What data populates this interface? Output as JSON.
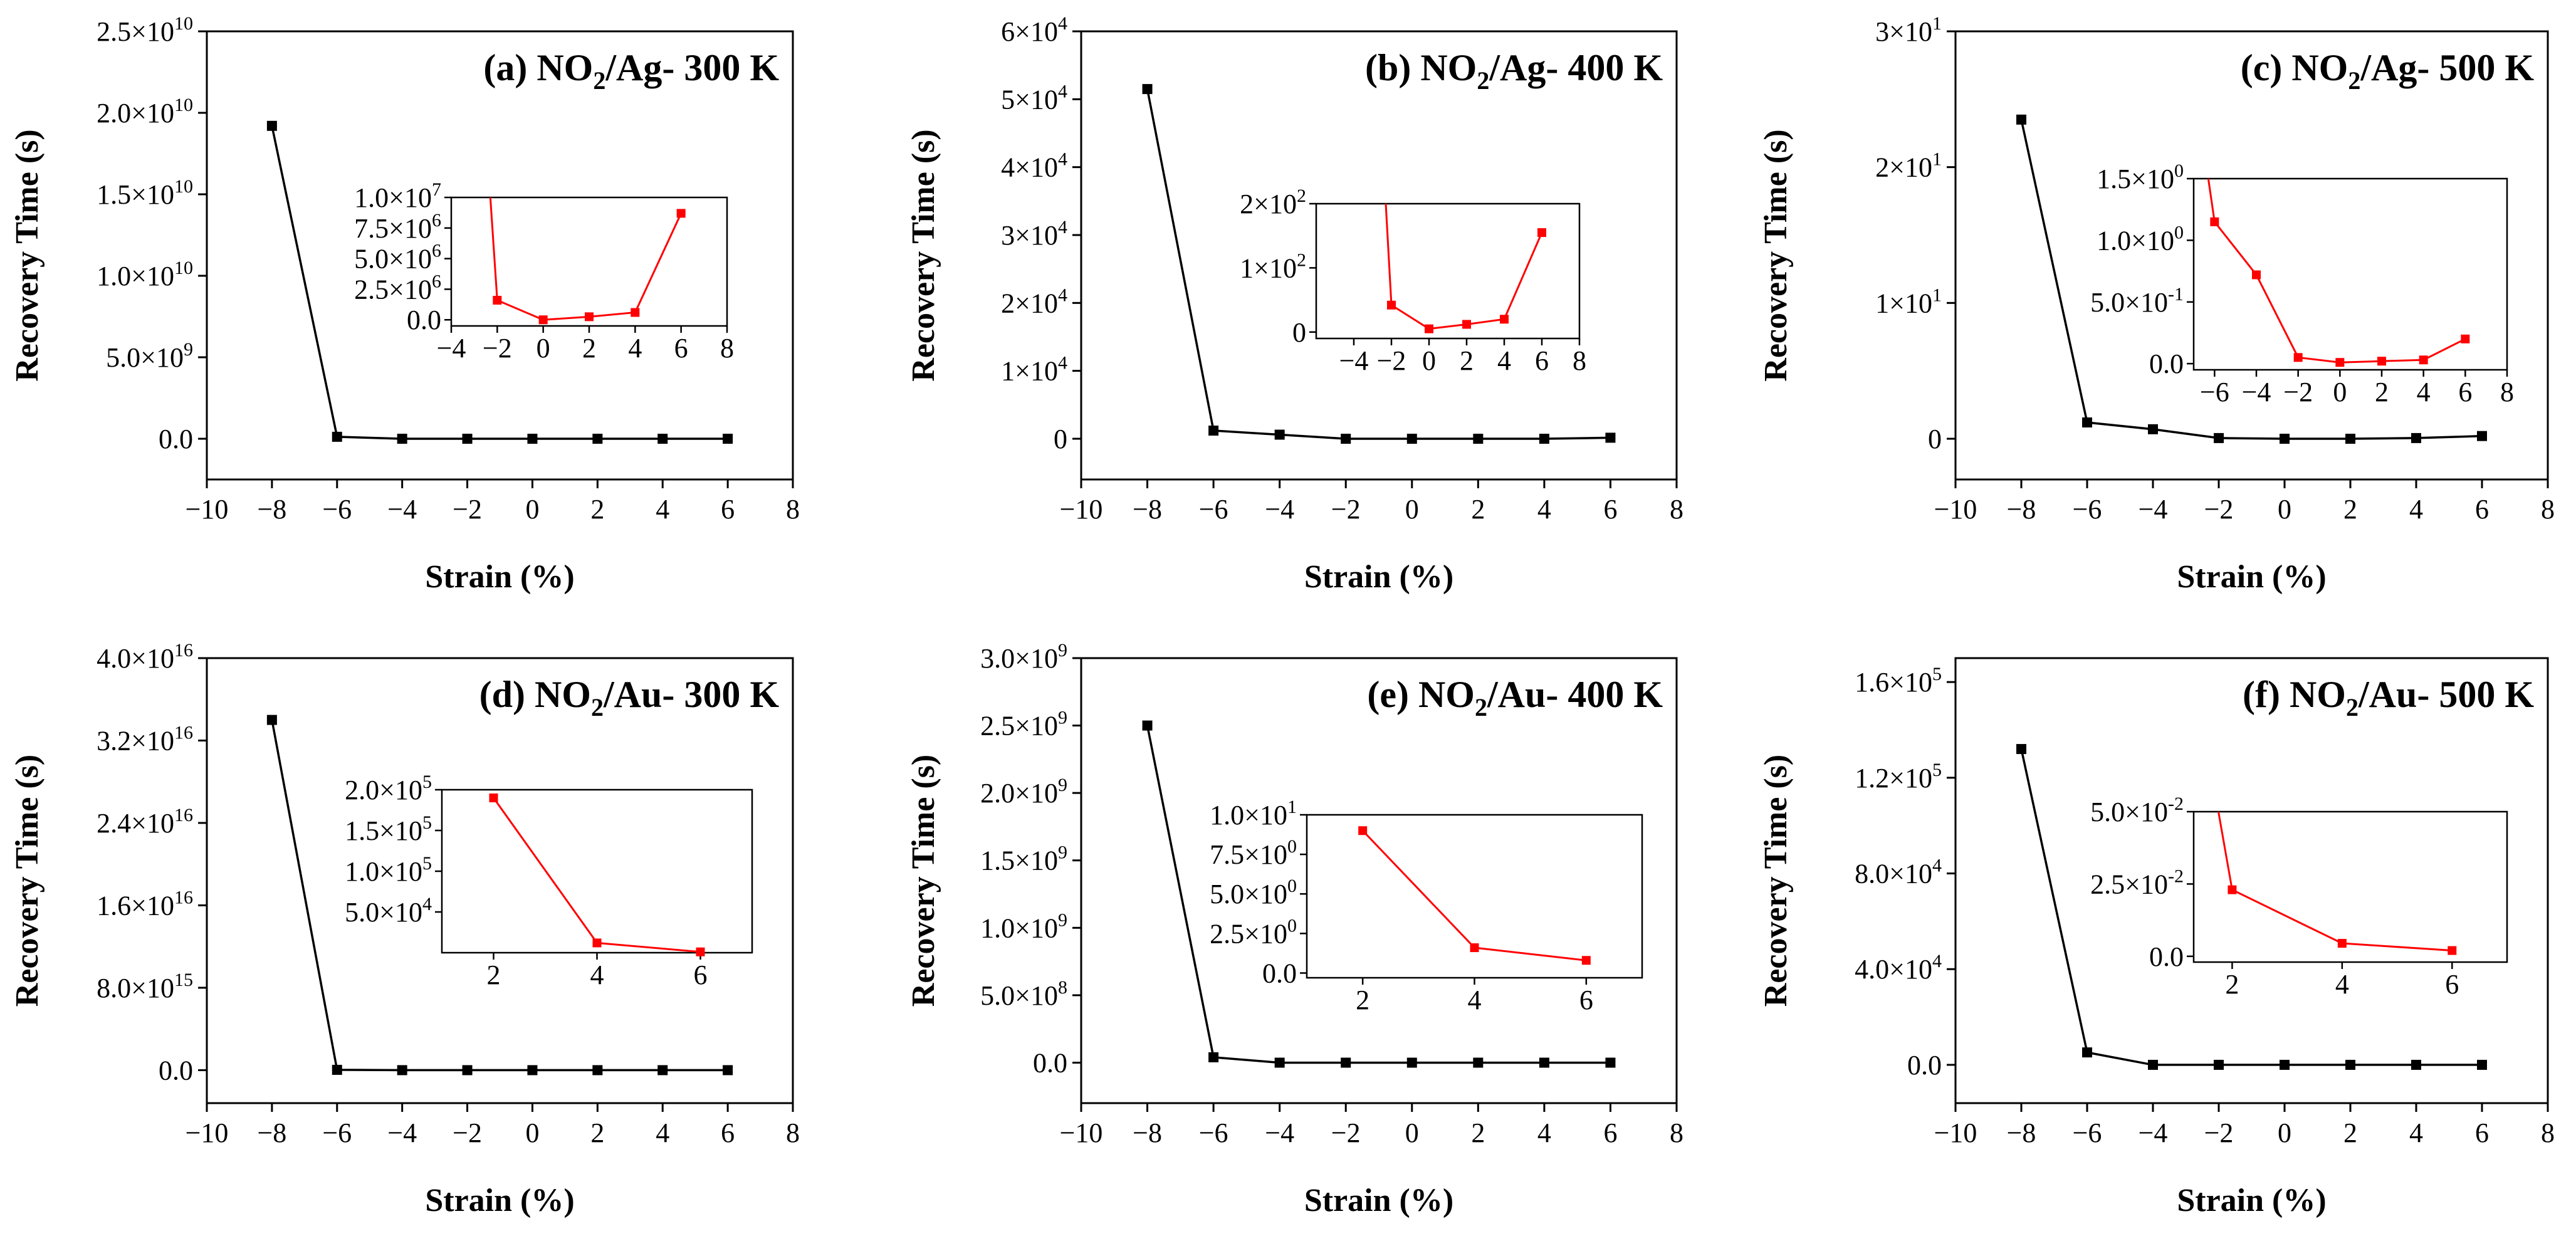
{
  "figure": {
    "description_free": true,
    "xlabel": "Strain (%)",
    "ylabel": "Recovery Time (s)"
  },
  "chart_data": [
    {
      "type": "line",
      "id": "a",
      "title": {
        "prefix": "(a) NO",
        "sub": "2",
        "suffix": "/Ag-  300 K"
      },
      "xlabel": "Strain (%)",
      "ylabel": "Recovery Time (s)",
      "xlim": [
        -10,
        8
      ],
      "ylim": [
        -2500000000.0,
        25000000000.0
      ],
      "xticks": [
        "-10",
        "-8",
        "-6",
        "-4",
        "-2",
        "0",
        "2",
        "4",
        "6",
        "8"
      ],
      "yticks": [
        {
          "value": 0,
          "label": "0.0",
          "exp": ""
        },
        {
          "value": 5000000000.0,
          "label": "5.0×10",
          "exp": "9"
        },
        {
          "value": 10000000000.0,
          "label": "1.0×10",
          "exp": "10"
        },
        {
          "value": 15000000000.0,
          "label": "1.5×10",
          "exp": "10"
        },
        {
          "value": 20000000000.0,
          "label": "2.0×10",
          "exp": "10"
        },
        {
          "value": 25000000000.0,
          "label": "2.5×10",
          "exp": "10"
        }
      ],
      "series": [
        {
          "name": "main",
          "color": "#000000",
          "x": [
            -8,
            -6,
            -4,
            -2,
            0,
            2,
            4,
            6
          ],
          "y": [
            19200000000.0,
            120000000.0,
            0,
            0,
            0,
            0,
            0,
            0
          ]
        }
      ],
      "inset": {
        "xlim": [
          -4,
          8
        ],
        "ylim": [
          -500000.0,
          10000000.0
        ],
        "xticks": [
          "-4",
          "-2",
          "0",
          "2",
          "4",
          "6",
          "8"
        ],
        "yticks": [
          {
            "value": 0,
            "label": "0.0",
            "exp": ""
          },
          {
            "value": 2500000.0,
            "label": "2.5×10",
            "exp": "6"
          },
          {
            "value": 5000000.0,
            "label": "5.0×10",
            "exp": "6"
          },
          {
            "value": 7500000.0,
            "label": "7.5×10",
            "exp": "6"
          },
          {
            "value": 10000000.0,
            "label": "1.0×10",
            "exp": "7"
          }
        ],
        "color": "#ff0000",
        "lead_in_from": {
          "x": -2.3,
          "y": 10000000.0
        },
        "x": [
          -2,
          0,
          2,
          4,
          6
        ],
        "y": [
          1600000.0,
          0,
          250000.0,
          600000.0,
          8700000.0
        ]
      }
    },
    {
      "type": "line",
      "id": "b",
      "title": {
        "prefix": "(b) NO",
        "sub": "2",
        "suffix": "/Ag-  400 K"
      },
      "xlabel": "Strain (%)",
      "ylabel": "Recovery Time (s)",
      "xlim": [
        -10,
        8
      ],
      "ylim": [
        -6000.0,
        60000.0
      ],
      "xticks": [
        "-10",
        "-8",
        "-6",
        "-4",
        "-2",
        "0",
        "2",
        "4",
        "6",
        "8"
      ],
      "yticks": [
        {
          "value": 0,
          "label": "0",
          "exp": ""
        },
        {
          "value": 10000.0,
          "label": "1×10",
          "exp": "4"
        },
        {
          "value": 20000.0,
          "label": "2×10",
          "exp": "4"
        },
        {
          "value": 30000.0,
          "label": "3×10",
          "exp": "4"
        },
        {
          "value": 40000.0,
          "label": "4×10",
          "exp": "4"
        },
        {
          "value": 50000.0,
          "label": "5×10",
          "exp": "4"
        },
        {
          "value": 60000.0,
          "label": "6×10",
          "exp": "4"
        }
      ],
      "series": [
        {
          "name": "main",
          "color": "#000000",
          "x": [
            -8,
            -6,
            -4,
            -2,
            0,
            2,
            4,
            6
          ],
          "y": [
            51500,
            1200,
            600,
            0,
            0,
            0,
            0,
            150
          ]
        }
      ],
      "inset": {
        "xlim": [
          -6,
          8
        ],
        "ylim": [
          -10,
          200
        ],
        "xticks": [
          "-4",
          "-2",
          "0",
          "2",
          "4",
          "6",
          "8"
        ],
        "yticks": [
          {
            "value": 0,
            "label": "0",
            "exp": ""
          },
          {
            "value": 100,
            "label": "1×10",
            "exp": "2"
          },
          {
            "value": 200,
            "label": "2×10",
            "exp": "2"
          }
        ],
        "color": "#ff0000",
        "lead_in_from": {
          "x": -2.3,
          "y": 200
        },
        "x": [
          -2,
          0,
          2,
          4,
          6
        ],
        "y": [
          42,
          5,
          12,
          20,
          155
        ]
      }
    },
    {
      "type": "line",
      "id": "c",
      "title": {
        "prefix": "(c) NO",
        "sub": "2",
        "suffix": "/Ag-  500 K"
      },
      "xlabel": "Strain (%)",
      "ylabel": "Recovery Time (s)",
      "xlim": [
        -10,
        8
      ],
      "ylim": [
        -3,
        30
      ],
      "xticks": [
        "-10",
        "-8",
        "-6",
        "-4",
        "-2",
        "0",
        "2",
        "4",
        "6",
        "8"
      ],
      "yticks": [
        {
          "value": 0,
          "label": "0",
          "exp": ""
        },
        {
          "value": 10,
          "label": "1×10",
          "exp": "1"
        },
        {
          "value": 20,
          "label": "2×10",
          "exp": "1"
        },
        {
          "value": 30,
          "label": "3×10",
          "exp": "1"
        }
      ],
      "series": [
        {
          "name": "main",
          "color": "#000000",
          "x": [
            -8,
            -6,
            -4,
            -2,
            0,
            2,
            4,
            6
          ],
          "y": [
            23.5,
            1.2,
            0.7,
            0.05,
            0,
            0,
            0.05,
            0.2
          ]
        }
      ],
      "inset": {
        "xlim": [
          -7,
          8
        ],
        "ylim": [
          -0.05,
          1.5
        ],
        "xticks": [
          "-6",
          "-4",
          "-2",
          "0",
          "2",
          "4",
          "6",
          "8"
        ],
        "yticks": [
          {
            "value": 0,
            "label": "0.0",
            "exp": ""
          },
          {
            "value": 0.5,
            "label": "5.0×10",
            "exp": "-1"
          },
          {
            "value": 1.0,
            "label": "1.0×10",
            "exp": "0"
          },
          {
            "value": 1.5,
            "label": "1.5×10",
            "exp": "0"
          }
        ],
        "color": "#ff0000",
        "lead_in_from": {
          "x": -6.3,
          "y": 1.5
        },
        "x": [
          -6,
          -4,
          -2,
          0,
          2,
          4,
          6
        ],
        "y": [
          1.15,
          0.72,
          0.05,
          0.01,
          0.02,
          0.03,
          0.2
        ]
      }
    },
    {
      "type": "line",
      "id": "d",
      "title": {
        "prefix": "(d) NO",
        "sub": "2",
        "suffix": "/Au-  300 K"
      },
      "xlabel": "Strain (%)",
      "ylabel": "Recovery Time (s)",
      "xlim": [
        -10,
        8
      ],
      "ylim": [
        -3200000000000000.0,
        4e+16
      ],
      "xticks": [
        "-10",
        "-8",
        "-6",
        "-4",
        "-2",
        "0",
        "2",
        "4",
        "6",
        "8"
      ],
      "yticks": [
        {
          "value": 0,
          "label": "0.0",
          "exp": ""
        },
        {
          "value": 8000000000000000.0,
          "label": "8.0×10",
          "exp": "15"
        },
        {
          "value": 1.6e+16,
          "label": "1.6×10",
          "exp": "16"
        },
        {
          "value": 2.4e+16,
          "label": "2.4×10",
          "exp": "16"
        },
        {
          "value": 3.2e+16,
          "label": "3.2×10",
          "exp": "16"
        },
        {
          "value": 4e+16,
          "label": "4.0×10",
          "exp": "16"
        }
      ],
      "series": [
        {
          "name": "main",
          "color": "#000000",
          "x": [
            -8,
            -6,
            -4,
            -2,
            0,
            2,
            4,
            6
          ],
          "y": [
            3.4e+16,
            30000000000000.0,
            0,
            0,
            0,
            0,
            0,
            0
          ]
        }
      ],
      "inset": {
        "xlim": [
          1,
          7
        ],
        "ylim": [
          0,
          200000.0
        ],
        "xticks": [
          "2",
          "4",
          "6"
        ],
        "yticks": [
          {
            "value": 50000.0,
            "label": "5.0×10",
            "exp": "4"
          },
          {
            "value": 100000.0,
            "label": "1.0×10",
            "exp": "5"
          },
          {
            "value": 150000.0,
            "label": "1.5×10",
            "exp": "5"
          },
          {
            "value": 200000.0,
            "label": "2.0×10",
            "exp": "5"
          }
        ],
        "color": "#ff0000",
        "x": [
          2,
          4,
          6
        ],
        "y": [
          190000.0,
          12000.0,
          1000.0
        ]
      }
    },
    {
      "type": "line",
      "id": "e",
      "title": {
        "prefix": "(e) NO",
        "sub": "2",
        "suffix": "/Au-  400 K"
      },
      "xlabel": "Strain (%)",
      "ylabel": "Recovery Time (s)",
      "xlim": [
        -10,
        8
      ],
      "ylim": [
        -300000000.0,
        3000000000.0
      ],
      "xticks": [
        "-10",
        "-8",
        "-6",
        "-4",
        "-2",
        "0",
        "2",
        "4",
        "6",
        "8"
      ],
      "yticks": [
        {
          "value": 0,
          "label": "0.0",
          "exp": ""
        },
        {
          "value": 500000000.0,
          "label": "5.0×10",
          "exp": "8"
        },
        {
          "value": 1000000000.0,
          "label": "1.0×10",
          "exp": "9"
        },
        {
          "value": 1500000000.0,
          "label": "1.5×10",
          "exp": "9"
        },
        {
          "value": 2000000000.0,
          "label": "2.0×10",
          "exp": "9"
        },
        {
          "value": 2500000000.0,
          "label": "2.5×10",
          "exp": "9"
        },
        {
          "value": 3000000000.0,
          "label": "3.0×10",
          "exp": "9"
        }
      ],
      "series": [
        {
          "name": "main",
          "color": "#000000",
          "x": [
            -8,
            -6,
            -4,
            -2,
            0,
            2,
            4,
            6
          ],
          "y": [
            2500000000.0,
            40000000.0,
            0,
            0,
            0,
            0,
            0,
            0
          ]
        }
      ],
      "inset": {
        "xlim": [
          1,
          7
        ],
        "ylim": [
          -0.3,
          10
        ],
        "xticks": [
          "2",
          "4",
          "6"
        ],
        "yticks": [
          {
            "value": 0,
            "label": "0.0",
            "exp": ""
          },
          {
            "value": 2.5,
            "label": "2.5×10",
            "exp": "0"
          },
          {
            "value": 5,
            "label": "5.0×10",
            "exp": "0"
          },
          {
            "value": 7.5,
            "label": "7.5×10",
            "exp": "0"
          },
          {
            "value": 10,
            "label": "1.0×10",
            "exp": "1"
          }
        ],
        "color": "#ff0000",
        "x": [
          2,
          4,
          6
        ],
        "y": [
          9.0,
          1.6,
          0.8
        ]
      }
    },
    {
      "type": "line",
      "id": "f",
      "title": {
        "prefix": "(f) NO",
        "sub": "2",
        "suffix": "/Au-  500 K"
      },
      "xlabel": "Strain (%)",
      "ylabel": "Recovery Time (s)",
      "xlim": [
        -10,
        8
      ],
      "ylim": [
        -16000.0,
        170000.0
      ],
      "xticks": [
        "-10",
        "-8",
        "-6",
        "-4",
        "-2",
        "0",
        "2",
        "4",
        "6",
        "8"
      ],
      "yticks": [
        {
          "value": 0,
          "label": "0.0",
          "exp": ""
        },
        {
          "value": 40000.0,
          "label": "4.0×10",
          "exp": "4"
        },
        {
          "value": 80000.0,
          "label": "8.0×10",
          "exp": "4"
        },
        {
          "value": 120000.0,
          "label": "1.2×10",
          "exp": "5"
        },
        {
          "value": 160000.0,
          "label": "1.6×10",
          "exp": "5"
        }
      ],
      "series": [
        {
          "name": "main",
          "color": "#000000",
          "x": [
            -8,
            -6,
            -4,
            -2,
            0,
            2,
            4,
            6
          ],
          "y": [
            132000.0,
            5200,
            0,
            0,
            0,
            0,
            0,
            0
          ]
        }
      ],
      "inset": {
        "xlim": [
          1.3,
          7
        ],
        "ylim": [
          -0.002,
          0.05
        ],
        "xticks": [
          "2",
          "4",
          "6"
        ],
        "yticks": [
          {
            "value": 0,
            "label": "0.0",
            "exp": ""
          },
          {
            "value": 0.025,
            "label": "2.5×10",
            "exp": "-2"
          },
          {
            "value": 0.05,
            "label": "5.0×10",
            "exp": "-2"
          }
        ],
        "color": "#ff0000",
        "lead_in_from": {
          "x": 1.75,
          "y": 0.05
        },
        "x": [
          2,
          4,
          6
        ],
        "y": [
          0.023,
          0.0045,
          0.002
        ]
      }
    }
  ]
}
